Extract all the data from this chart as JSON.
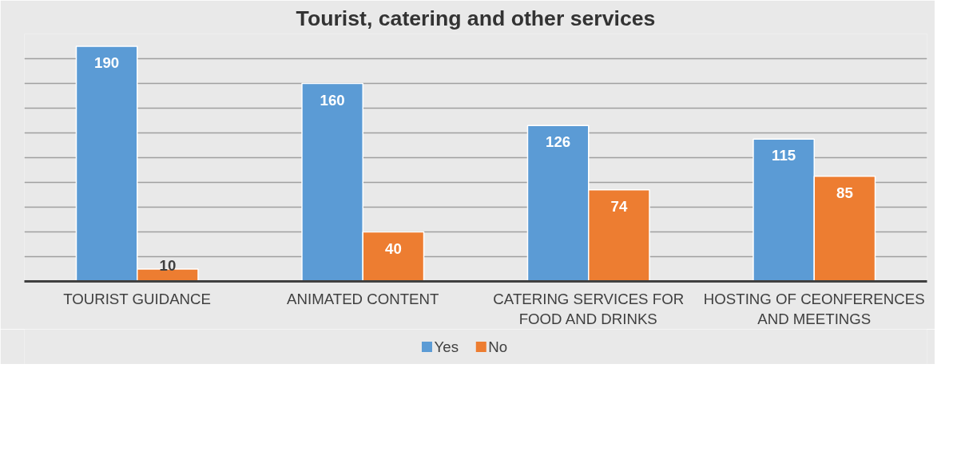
{
  "chart_data": {
    "type": "bar",
    "title": "Tourist, catering and other services",
    "categories": [
      "TOURIST GUIDANCE",
      "ANIMATED CONTENT",
      "CATERING SERVICES FOR FOOD AND DRINKS",
      "HOSTING OF CEONFERENCES AND MEETINGS"
    ],
    "series": [
      {
        "name": "Yes",
        "color": "#5b9bd5",
        "values": [
          190,
          160,
          126,
          115
        ]
      },
      {
        "name": "No",
        "color": "#ed7d31",
        "values": [
          10,
          40,
          74,
          85
        ]
      }
    ],
    "ylim": [
      0,
      200
    ],
    "yticks": [
      {
        "value": 0,
        "label": null
      },
      {
        "value": 20,
        "label": null
      },
      {
        "value": 40,
        "label": null
      },
      {
        "value": 60,
        "label": null
      },
      {
        "value": 80,
        "label": null
      },
      {
        "value": 100,
        "label": null
      },
      {
        "value": 120,
        "label": null
      },
      {
        "value": 140,
        "label": null
      },
      {
        "value": 160,
        "label": null
      },
      {
        "value": 180,
        "label": null
      },
      {
        "value": 200,
        "label": null
      }
    ],
    "tick_labels": "x",
    "grid": "y",
    "legend": "bottom",
    "data_labels": true
  }
}
